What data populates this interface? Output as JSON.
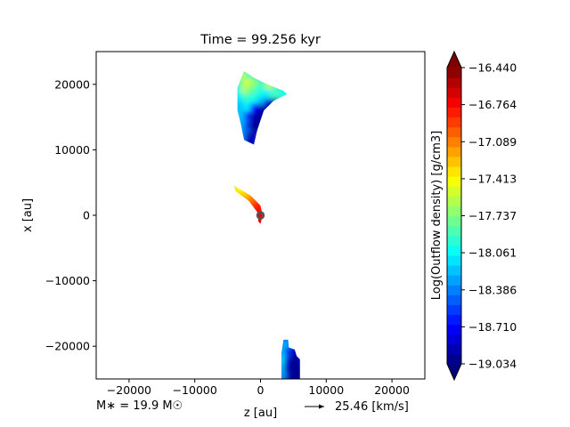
{
  "chart_data": {
    "type": "heatmap",
    "title": "Time = 99.256 kyr",
    "xlabel": "z [au]",
    "ylabel": "x [au]",
    "xlim": [
      -25000,
      25000
    ],
    "ylim": [
      -25000,
      25000
    ],
    "xticks": [
      {
        "value": -20000,
        "label": "−20000"
      },
      {
        "value": -10000,
        "label": "−10000"
      },
      {
        "value": 0,
        "label": "0"
      },
      {
        "value": 10000,
        "label": "10000"
      },
      {
        "value": 20000,
        "label": "20000"
      }
    ],
    "yticks": [
      {
        "value": -20000,
        "label": "−20000"
      },
      {
        "value": -10000,
        "label": "−10000"
      },
      {
        "value": 0,
        "label": "0"
      },
      {
        "value": 10000,
        "label": "10000"
      },
      {
        "value": 20000,
        "label": "20000"
      }
    ],
    "colorbar": {
      "label": "Log(Outflow density) [g/cm3]",
      "colormap": "jet",
      "levels": 30,
      "extend": "both",
      "range": [
        -19.034,
        -16.44
      ],
      "ticks": [
        {
          "value": -16.44,
          "label": "−16.440"
        },
        {
          "value": -16.764,
          "label": "−16.764"
        },
        {
          "value": -17.089,
          "label": "−17.089"
        },
        {
          "value": -17.413,
          "label": "−17.413"
        },
        {
          "value": -17.737,
          "label": "−17.737"
        },
        {
          "value": -18.061,
          "label": "−18.061"
        },
        {
          "value": -18.386,
          "label": "−18.386"
        },
        {
          "value": -18.71,
          "label": "−18.710"
        },
        {
          "value": -19.034,
          "label": "−19.034"
        }
      ]
    },
    "regions": [
      {
        "name": "upper-lobe",
        "outline": [
          [
            -2500,
            22000
          ],
          [
            -1000,
            21000
          ],
          [
            1000,
            20000
          ],
          [
            3500,
            19000
          ],
          [
            4000,
            18500
          ],
          [
            2000,
            17500
          ],
          [
            500,
            16000
          ],
          [
            -500,
            13000
          ],
          [
            -1000,
            10800
          ],
          [
            -2500,
            11500
          ],
          [
            -3000,
            14000
          ],
          [
            -3500,
            16000
          ],
          [
            -3500,
            19500
          ]
        ],
        "cells": [
          {
            "z": -2500,
            "x": 21500,
            "v": -17.6
          },
          {
            "z": -1500,
            "x": 21000,
            "v": -17.9
          },
          {
            "z": -3000,
            "x": 20000,
            "v": -17.8
          },
          {
            "z": -1800,
            "x": 20000,
            "v": -17.5
          },
          {
            "z": -800,
            "x": 20200,
            "v": -17.7
          },
          {
            "z": 300,
            "x": 19900,
            "v": -17.9
          },
          {
            "z": 1500,
            "x": 19500,
            "v": -17.6
          },
          {
            "z": 2800,
            "x": 19000,
            "v": -17.9
          },
          {
            "z": 3600,
            "x": 18600,
            "v": -18.0
          },
          {
            "z": -3000,
            "x": 19000,
            "v": -18.0
          },
          {
            "z": -2200,
            "x": 18900,
            "v": -17.6
          },
          {
            "z": -1200,
            "x": 18800,
            "v": -17.8
          },
          {
            "z": 0,
            "x": 18500,
            "v": -18.0
          },
          {
            "z": 1200,
            "x": 18400,
            "v": -18.1
          },
          {
            "z": 2200,
            "x": 18000,
            "v": -17.9
          },
          {
            "z": -3000,
            "x": 17800,
            "v": -18.1
          },
          {
            "z": -2000,
            "x": 17800,
            "v": -17.9
          },
          {
            "z": -1000,
            "x": 17600,
            "v": -18.0
          },
          {
            "z": 200,
            "x": 17200,
            "v": -18.2
          },
          {
            "z": 1300,
            "x": 16900,
            "v": -18.8
          },
          {
            "z": 2000,
            "x": 17000,
            "v": -18.9
          },
          {
            "z": -2800,
            "x": 16600,
            "v": -18.2
          },
          {
            "z": -1800,
            "x": 16500,
            "v": -18.1
          },
          {
            "z": -700,
            "x": 16200,
            "v": -18.7
          },
          {
            "z": 400,
            "x": 16000,
            "v": -18.9
          },
          {
            "z": 1200,
            "x": 15800,
            "v": -19.0
          },
          {
            "z": -2600,
            "x": 15200,
            "v": -18.2
          },
          {
            "z": -1700,
            "x": 15000,
            "v": -18.6
          },
          {
            "z": -800,
            "x": 14800,
            "v": -18.9
          },
          {
            "z": 200,
            "x": 14600,
            "v": -19.0
          },
          {
            "z": -2400,
            "x": 13700,
            "v": -18.3
          },
          {
            "z": -1500,
            "x": 13500,
            "v": -18.8
          },
          {
            "z": -600,
            "x": 13400,
            "v": -19.0
          },
          {
            "z": -2200,
            "x": 12300,
            "v": -18.4
          },
          {
            "z": -1300,
            "x": 12000,
            "v": -18.9
          },
          {
            "z": -1500,
            "x": 11200,
            "v": -18.9
          }
        ]
      },
      {
        "name": "inner-jet",
        "outline": [
          [
            -4000,
            4500
          ],
          [
            -3500,
            4200
          ],
          [
            -1500,
            3000
          ],
          [
            0,
            1500
          ],
          [
            300,
            0
          ],
          [
            0,
            -1300
          ],
          [
            -300,
            -1000
          ],
          [
            -500,
            500
          ],
          [
            -1800,
            2200
          ],
          [
            -3800,
            3700
          ]
        ],
        "cells": [
          {
            "z": -3600,
            "x": 4200,
            "v": -17.5
          },
          {
            "z": -2800,
            "x": 3800,
            "v": -17.4
          },
          {
            "z": -2000,
            "x": 3200,
            "v": -17.3
          },
          {
            "z": -1200,
            "x": 2400,
            "v": -17.1
          },
          {
            "z": -600,
            "x": 1500,
            "v": -16.9
          },
          {
            "z": -200,
            "x": 700,
            "v": -16.8
          },
          {
            "z": 0,
            "x": -200,
            "v": -16.7
          },
          {
            "z": 0,
            "x": -900,
            "v": -16.7
          }
        ]
      },
      {
        "name": "lower-lobe",
        "outline": [
          [
            3500,
            -19000
          ],
          [
            4200,
            -19000
          ],
          [
            4300,
            -20200
          ],
          [
            5200,
            -20500
          ],
          [
            5500,
            -21500
          ],
          [
            6000,
            -22000
          ],
          [
            6000,
            -25000
          ],
          [
            3200,
            -25000
          ],
          [
            3200,
            -21000
          ]
        ],
        "cells": [
          {
            "z": 3800,
            "x": -19600,
            "v": -18.3
          },
          {
            "z": 3700,
            "x": -20800,
            "v": -18.2
          },
          {
            "z": 4400,
            "x": -21000,
            "v": -18.6
          },
          {
            "z": 5200,
            "x": -21300,
            "v": -18.9
          },
          {
            "z": 3600,
            "x": -22200,
            "v": -18.1
          },
          {
            "z": 4400,
            "x": -22300,
            "v": -18.8
          },
          {
            "z": 5300,
            "x": -22500,
            "v": -19.0
          },
          {
            "z": 3600,
            "x": -23600,
            "v": -18.2
          },
          {
            "z": 4400,
            "x": -23600,
            "v": -18.9
          },
          {
            "z": 5400,
            "x": -23700,
            "v": -19.0
          },
          {
            "z": 3700,
            "x": -24600,
            "v": -18.3
          },
          {
            "z": 4600,
            "x": -24600,
            "v": -18.9
          },
          {
            "z": 5500,
            "x": -24600,
            "v": -19.0
          }
        ]
      }
    ],
    "sink_particle": {
      "z": 0,
      "x": 0
    },
    "annotations": {
      "mass": "M∗ = 19.9 M☉",
      "velocity_scale": "25.46 [km/s]"
    }
  }
}
